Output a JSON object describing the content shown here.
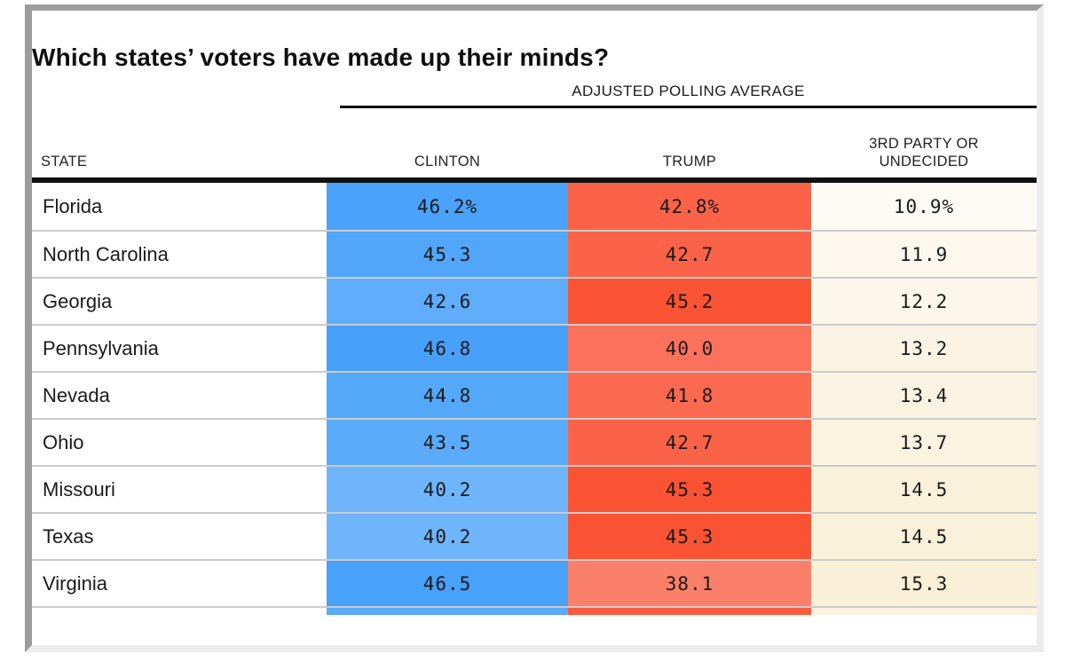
{
  "title": "Which states’ voters have made up their minds?",
  "table": {
    "spanner_label": "ADJUSTED POLLING AVERAGE",
    "columns": {
      "state": "STATE",
      "clinton": "CLINTON",
      "trump": "TRUMP",
      "undecided": "3RD PARTY OR UNDECIDED"
    }
  },
  "chart_data": {
    "type": "table",
    "title": "Which states’ voters have made up their minds?",
    "column_group_header": "ADJUSTED POLLING AVERAGE",
    "columns": [
      "STATE",
      "CLINTON",
      "TRUMP",
      "3RD PARTY OR UNDECIDED"
    ],
    "rows": [
      {
        "state": "Florida",
        "clinton": "46.2%",
        "trump": "42.8%",
        "undecided": "10.9%",
        "clinton_color": "#4AA2FA",
        "trump_color": "#FB6247",
        "undecided_color": "#FDFBF3"
      },
      {
        "state": "North Carolina",
        "clinton": "45.3",
        "trump": "42.7",
        "undecided": "11.9",
        "clinton_color": "#51A6FA",
        "trump_color": "#FB6348",
        "undecided_color": "#FCF8ED"
      },
      {
        "state": "Georgia",
        "clinton": "42.6",
        "trump": "45.2",
        "undecided": "12.2",
        "clinton_color": "#5FADFB",
        "trump_color": "#FA5434",
        "undecided_color": "#FCF7EA"
      },
      {
        "state": "Pennsylvania",
        "clinton": "46.8",
        "trump": "40.0",
        "undecided": "13.2",
        "clinton_color": "#47A0FA",
        "trump_color": "#FC715C",
        "undecided_color": "#FBF4E4"
      },
      {
        "state": "Nevada",
        "clinton": "44.8",
        "trump": "41.8",
        "undecided": "13.4",
        "clinton_color": "#54A8FA",
        "trump_color": "#FB6950",
        "undecided_color": "#FBF3E1"
      },
      {
        "state": "Ohio",
        "clinton": "43.5",
        "trump": "42.7",
        "undecided": "13.7",
        "clinton_color": "#5BABFB",
        "trump_color": "#FB6348",
        "undecided_color": "#FBF2DF"
      },
      {
        "state": "Missouri",
        "clinton": "40.2",
        "trump": "45.3",
        "undecided": "14.5",
        "clinton_color": "#6FB5FB",
        "trump_color": "#FA5333",
        "undecided_color": "#FAF1DB"
      },
      {
        "state": "Texas",
        "clinton": "40.2",
        "trump": "45.3",
        "undecided": "14.5",
        "clinton_color": "#6FB5FB",
        "trump_color": "#FA5333",
        "undecided_color": "#FAF1DB"
      },
      {
        "state": "Virginia",
        "clinton": "46.5",
        "trump": "38.1",
        "undecided": "15.3",
        "clinton_color": "#48A1FA",
        "trump_color": "#FB8069",
        "undecided_color": "#FAF0D8"
      }
    ],
    "partial_row": {
      "clinton_color": "#5BACFB",
      "trump_color": "#FA5B3E",
      "undecided_color": "#FBF2DF"
    }
  },
  "colors": {
    "clinton_accent": "#4AA2FA",
    "trump_accent": "#FA5333",
    "undecided_accent": "#FAF0D8",
    "row_separator": "#CBCBCB",
    "rule_black": "#111111",
    "frame_dark": "#9E9E9E",
    "frame_light": "#ECECEC"
  }
}
